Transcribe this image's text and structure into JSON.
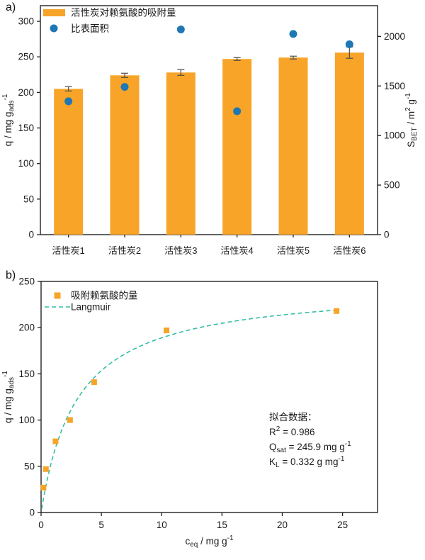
{
  "panels": {
    "a": {
      "label": "a)"
    },
    "b": {
      "label": "b)"
    }
  },
  "colors": {
    "bar_orange": "#F7A428",
    "dot_blue": "#1F77B4",
    "curve_teal": "#35BDA6",
    "error_bar": "#4d4d4d",
    "axis": "#222222",
    "text": "#1a1a1a"
  },
  "chart_data": [
    {
      "id": "a",
      "type": "bar",
      "categories": [
        "活性炭1",
        "活性炭2",
        "活性炭3",
        "活性炭4",
        "活性炭5",
        "活性炭6"
      ],
      "series": [
        {
          "name": "活性炭对赖氨酸的吸附量",
          "kind": "bar",
          "axis": "left",
          "values": [
            205,
            224,
            228,
            247,
            249,
            256
          ],
          "errors": [
            3,
            3,
            4,
            2,
            2,
            8
          ]
        },
        {
          "name": "比表面积",
          "kind": "scatter",
          "axis": "right",
          "values": [
            1345,
            1490,
            2070,
            1245,
            2025,
            1920
          ]
        }
      ],
      "left_axis": {
        "ticks": [
          0,
          50,
          100,
          150,
          200,
          250,
          300
        ],
        "max": 322,
        "label_parts": [
          {
            "t": "q / mg g",
            "s": "n"
          },
          {
            "t": "ads",
            "s": "sub"
          },
          {
            "t": "-1",
            "s": "sup"
          }
        ]
      },
      "right_axis": {
        "ticks": [
          0,
          500,
          1000,
          1500,
          2000
        ],
        "max": 2310,
        "label_parts": [
          {
            "t": "S",
            "s": "n"
          },
          {
            "t": "BET",
            "s": "sub"
          },
          {
            "t": " / m",
            "s": "n"
          },
          {
            "t": "2",
            "s": "sup"
          },
          {
            "t": " g",
            "s": "n"
          },
          {
            "t": "-1",
            "s": "sup"
          }
        ]
      },
      "legend_position": "top-left",
      "grid": false
    },
    {
      "id": "b",
      "type": "scatter",
      "series_name": "吸附赖氨酸的量",
      "points": {
        "x": [
          0.2,
          0.4,
          1.2,
          2.4,
          4.4,
          10.4,
          24.5
        ],
        "y": [
          27,
          47,
          77,
          100,
          141,
          197,
          218
        ]
      },
      "fit": {
        "name": "Langmuir",
        "Qsat": 245.9,
        "KL": 0.332,
        "R2": 0.986,
        "x_start": 0.05,
        "x_end": 24.5
      },
      "x_axis": {
        "ticks": [
          0,
          5,
          10,
          15,
          20,
          25
        ],
        "max": 27.9,
        "label_parts": [
          {
            "t": "c",
            "s": "n"
          },
          {
            "t": "eq",
            "s": "sub"
          },
          {
            "t": " / mg g",
            "s": "n"
          },
          {
            "t": "-1",
            "s": "sup"
          }
        ]
      },
      "y_axis": {
        "ticks": [
          0,
          50,
          100,
          150,
          200,
          250
        ],
        "max": 250,
        "label_parts": [
          {
            "t": "q / mg g",
            "s": "n"
          },
          {
            "t": "ads",
            "s": "sub"
          },
          {
            "t": "-1",
            "s": "sup"
          }
        ]
      },
      "annotation": {
        "lines": [
          [
            {
              "t": "拟合数据：",
              "s": "n"
            }
          ],
          [
            {
              "t": "R",
              "s": "n"
            },
            {
              "t": "2",
              "s": "sup"
            },
            {
              "t": " = 0.986",
              "s": "n"
            }
          ],
          [
            {
              "t": "Q",
              "s": "n"
            },
            {
              "t": "sat",
              "s": "sub"
            },
            {
              "t": " = 245.9 mg g",
              "s": "n"
            },
            {
              "t": "-1",
              "s": "sup"
            }
          ],
          [
            {
              "t": "K",
              "s": "n"
            },
            {
              "t": "L",
              "s": "sub"
            },
            {
              "t": " = 0.332 g mg",
              "s": "n"
            },
            {
              "t": "-1",
              "s": "sup"
            }
          ]
        ]
      },
      "legend_position": "top-left",
      "grid": false
    }
  ]
}
